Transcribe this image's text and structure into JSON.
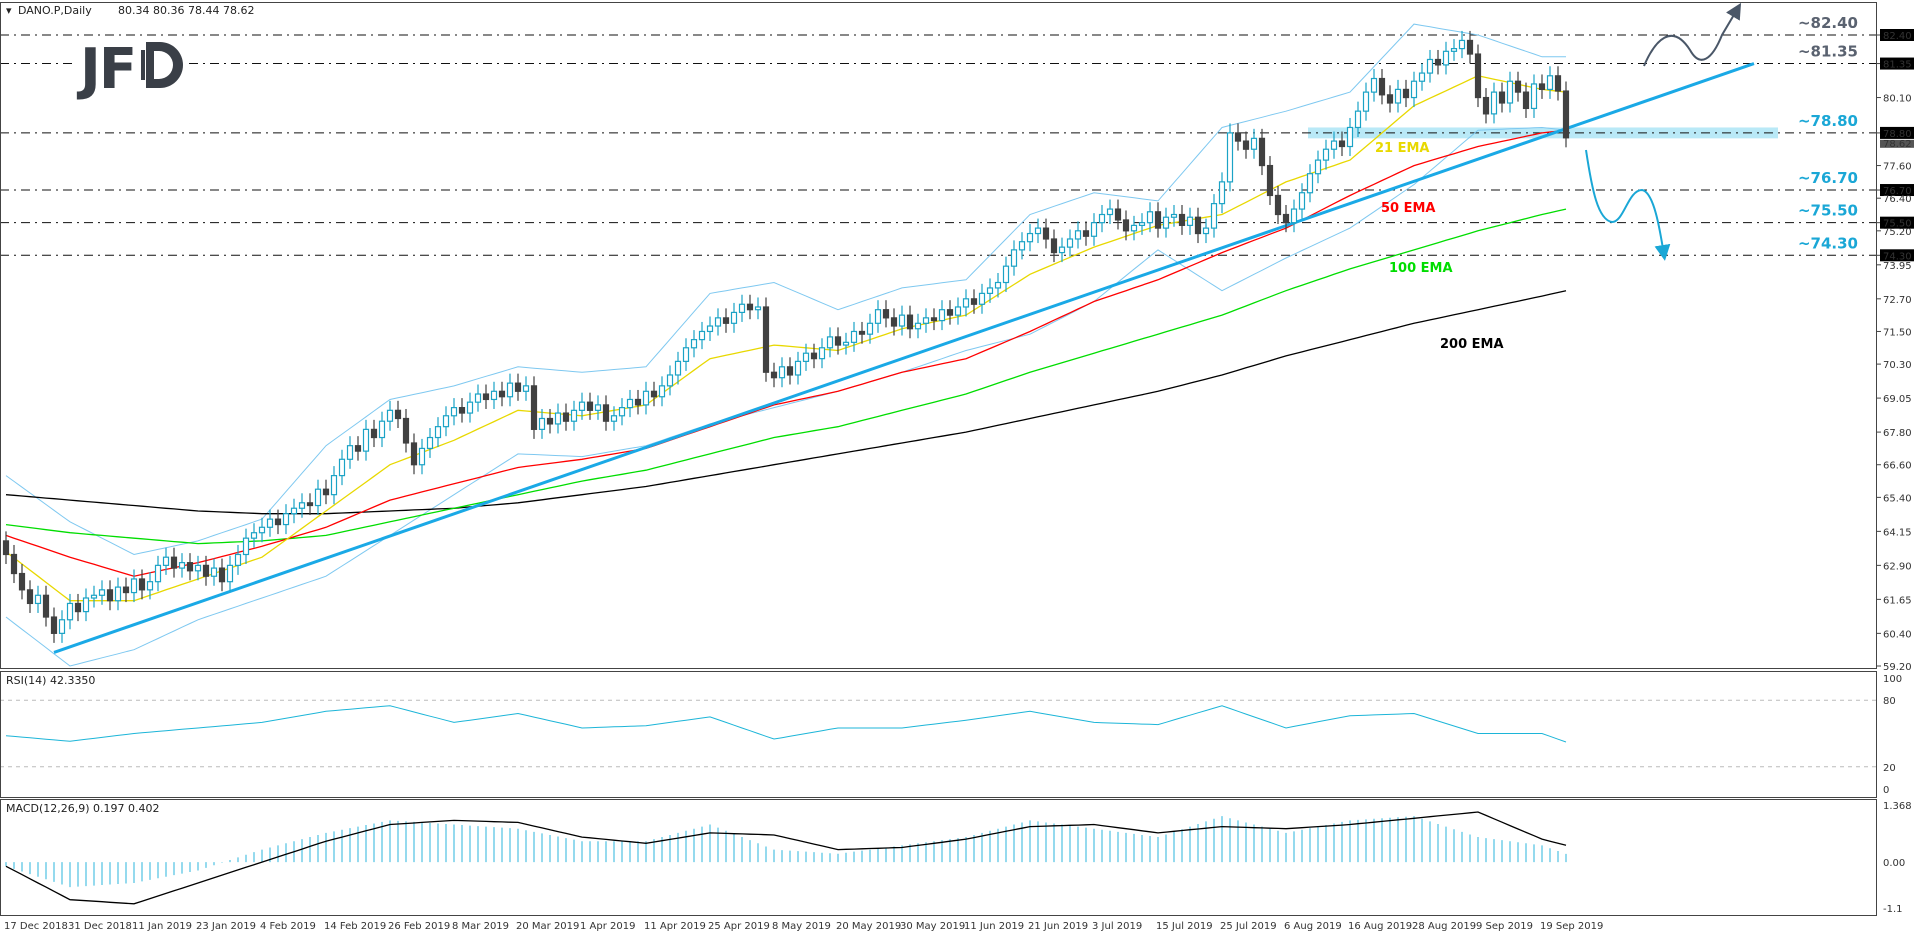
{
  "header": {
    "symbol": "DANO.P,Daily",
    "ohlc": "80.34 80.36 78.44 78.62"
  },
  "logo": "JFD",
  "colors": {
    "bull": "#1ba3c6",
    "bear": "#404040",
    "ema21": "#e8d800",
    "ema50": "#ff0000",
    "ema100": "#00dd00",
    "ema200": "#000000",
    "bollinger": "#7ec8f0",
    "trendline": "#1aa9e6",
    "support_zone": "#a8e4f5",
    "level_gray": "#5a6270",
    "level_cyan": "#1aa7d6",
    "rsi": "#1cb5d8",
    "macd_hist": "#2bb6dc",
    "macd_signal": "#000000"
  },
  "chart_data": [
    {
      "type": "candlestick",
      "title": "DANO.P,Daily",
      "x_tick_labels": [
        "17 Dec 2018",
        "31 Dec 2018",
        "11 Jan 2019",
        "23 Jan 2019",
        "4 Feb 2019",
        "14 Feb 2019",
        "26 Feb 2019",
        "8 Mar 2019",
        "20 Mar 2019",
        "1 Apr 2019",
        "11 Apr 2019",
        "25 Apr 2019",
        "8 May 2019",
        "20 May 2019",
        "30 May 2019",
        "11 Jun 2019",
        "21 Jun 2019",
        "3 Jul 2019",
        "15 Jul 2019",
        "25 Jul 2019",
        "6 Aug 2019",
        "16 Aug 2019",
        "28 Aug 2019",
        "9 Sep 2019",
        "19 Sep 2019"
      ],
      "ylim": [
        59.2,
        82.4
      ],
      "y_ticks": [
        "82.40",
        "81.35",
        "80.10",
        "78.80",
        "77.60",
        "76.70",
        "76.40",
        "75.50",
        "75.20",
        "74.30",
        "73.95",
        "72.70",
        "71.50",
        "70.30",
        "69.05",
        "67.80",
        "66.60",
        "65.40",
        "64.15",
        "62.90",
        "61.65",
        "60.40",
        "59.20"
      ],
      "highlighted_ticks": [
        "82.40",
        "81.35",
        "78.80",
        "76.70",
        "75.50",
        "74.30"
      ],
      "last_price": "78.62",
      "closes": [
        63.3,
        62.6,
        62.0,
        61.5,
        61.8,
        61.0,
        60.4,
        60.9,
        61.5,
        61.2,
        61.7,
        61.8,
        62.0,
        61.6,
        62.1,
        61.9,
        62.4,
        62.0,
        62.3,
        62.9,
        63.2,
        62.8,
        63.0,
        62.7,
        62.9,
        62.5,
        62.8,
        62.3,
        62.9,
        63.3,
        63.9,
        64.1,
        64.3,
        64.6,
        64.4,
        64.8,
        65.0,
        65.2,
        65.1,
        65.7,
        65.5,
        66.2,
        66.8,
        67.3,
        67.1,
        67.9,
        67.6,
        68.2,
        68.6,
        68.3,
        67.4,
        66.6,
        67.2,
        67.6,
        68.0,
        68.4,
        68.7,
        68.5,
        68.9,
        69.2,
        69.0,
        69.3,
        69.1,
        69.6,
        69.3,
        69.5,
        67.9,
        68.3,
        68.1,
        68.5,
        68.2,
        68.6,
        68.9,
        68.6,
        68.8,
        68.2,
        68.4,
        68.7,
        69.0,
        68.8,
        69.3,
        69.1,
        69.5,
        69.9,
        70.4,
        70.9,
        71.2,
        71.5,
        71.7,
        72.0,
        71.8,
        72.2,
        72.5,
        72.3,
        72.4,
        70.0,
        69.8,
        70.2,
        69.9,
        70.4,
        70.7,
        70.5,
        70.9,
        71.3,
        71.0,
        71.1,
        71.5,
        71.4,
        71.8,
        72.3,
        72.0,
        71.7,
        72.1,
        71.6,
        71.8,
        72.0,
        71.9,
        72.3,
        72.1,
        72.4,
        72.7,
        72.5,
        72.9,
        73.1,
        73.3,
        73.9,
        74.5,
        74.8,
        75.1,
        75.3,
        74.9,
        74.4,
        74.6,
        74.9,
        75.2,
        75.0,
        75.5,
        75.8,
        76.0,
        75.6,
        75.2,
        75.4,
        75.5,
        75.9,
        75.3,
        75.7,
        75.8,
        75.4,
        75.7,
        75.1,
        75.3,
        76.2,
        77.0,
        78.8,
        78.5,
        78.2,
        78.6,
        77.6,
        76.5,
        75.8,
        75.5,
        76.0,
        76.6,
        77.3,
        77.8,
        78.2,
        78.5,
        78.3,
        79.0,
        79.6,
        80.3,
        80.8,
        80.2,
        79.9,
        80.4,
        80.1,
        80.7,
        81.0,
        81.5,
        81.3,
        81.8,
        81.9,
        82.2,
        81.7,
        80.1,
        79.5,
        80.3,
        79.9,
        80.7,
        80.3,
        79.7,
        80.6,
        80.4,
        80.9,
        80.34,
        78.62
      ],
      "first_open": 63.8,
      "overlays_at_tick_dates_and_last": {
        "ema21": [
          63.4,
          61.6,
          61.6,
          62.4,
          63.2,
          64.9,
          66.6,
          67.5,
          68.6,
          68.4,
          68.8,
          70.5,
          71.0,
          70.8,
          71.6,
          72.1,
          73.6,
          74.6,
          75.4,
          75.8,
          77.0,
          77.8,
          79.8,
          80.9,
          80.4,
          80.3
        ],
        "ema50": [
          64.0,
          63.2,
          62.5,
          63.0,
          63.6,
          64.3,
          65.3,
          65.9,
          66.5,
          66.8,
          67.2,
          68.0,
          68.8,
          69.3,
          70.0,
          70.5,
          71.5,
          72.6,
          73.4,
          74.4,
          75.3,
          76.5,
          77.6,
          78.3,
          78.8,
          78.9
        ],
        "ema100": [
          64.4,
          64.1,
          63.9,
          63.7,
          63.8,
          64.0,
          64.5,
          65.0,
          65.5,
          66.0,
          66.4,
          67.0,
          67.6,
          68.0,
          68.6,
          69.2,
          70.0,
          70.7,
          71.4,
          72.1,
          73.0,
          73.8,
          74.5,
          75.2,
          75.8,
          76.0
        ],
        "ema200": [
          65.5,
          65.3,
          65.1,
          64.9,
          64.8,
          64.8,
          64.9,
          65.0,
          65.2,
          65.5,
          65.8,
          66.2,
          66.6,
          67.0,
          67.4,
          67.8,
          68.3,
          68.8,
          69.3,
          69.9,
          70.6,
          71.2,
          71.8,
          72.3,
          72.8,
          73.0
        ],
        "bb_upper": [
          66.2,
          64.5,
          63.3,
          63.8,
          64.6,
          67.3,
          69.0,
          69.5,
          70.2,
          70.0,
          70.2,
          72.9,
          73.3,
          72.3,
          73.1,
          73.4,
          75.8,
          76.6,
          76.3,
          79.0,
          79.6,
          80.3,
          82.8,
          82.4,
          81.6,
          81.6
        ],
        "bb_lower": [
          61.0,
          59.2,
          59.8,
          60.9,
          61.7,
          62.5,
          64.0,
          65.5,
          67.0,
          66.9,
          67.3,
          68.1,
          68.7,
          69.3,
          70.0,
          70.8,
          71.4,
          72.6,
          74.5,
          73.0,
          74.2,
          75.3,
          76.9,
          78.9,
          79.0,
          78.9
        ]
      },
      "ema_labels": {
        "ema21": "21 EMA",
        "ema50": "50 EMA",
        "ema100": "100 EMA",
        "ema200": "200 EMA"
      },
      "levels": [
        {
          "price": 82.4,
          "label": "~82.40",
          "tone": "gray"
        },
        {
          "price": 81.35,
          "label": "~81.35",
          "tone": "gray"
        },
        {
          "price": 78.8,
          "label": "~78.80",
          "tone": "cyan"
        },
        {
          "price": 76.7,
          "label": "~76.70",
          "tone": "cyan"
        },
        {
          "price": 75.5,
          "label": "~75.50",
          "tone": "cyan"
        },
        {
          "price": 74.3,
          "label": "~74.30",
          "tone": "cyan"
        }
      ]
    },
    {
      "type": "line",
      "title": "RSI(14) 42.3350",
      "ylim": [
        0,
        100
      ],
      "y_ticks": [
        "100",
        "80",
        "20",
        "0"
      ],
      "reference_levels": [
        80,
        20
      ],
      "values_at_tick_dates_and_last": [
        48,
        43,
        50,
        55,
        60,
        70,
        75,
        60,
        68,
        55,
        57,
        65,
        45,
        55,
        55,
        62,
        70,
        60,
        58,
        75,
        55,
        66,
        68,
        50,
        50,
        42.335
      ]
    },
    {
      "type": "bar",
      "title": "MACD(12,26,9) 0.197 0.402",
      "ylim": [
        -1.1,
        1.368
      ],
      "y_ticks": [
        "1.368",
        "0.00",
        "-1.1"
      ],
      "macd_at_tick_dates_and_last": [
        -0.1,
        -0.6,
        -0.5,
        -0.2,
        0.3,
        0.7,
        1.0,
        0.9,
        0.8,
        0.5,
        0.5,
        0.9,
        0.3,
        0.2,
        0.4,
        0.6,
        1.0,
        0.8,
        0.6,
        1.1,
        0.7,
        1.0,
        1.1,
        0.6,
        0.4,
        0.197
      ],
      "signal_at_tick_dates_and_last": [
        -0.1,
        -0.9,
        -1.0,
        -0.5,
        0.0,
        0.5,
        0.9,
        1.0,
        0.95,
        0.6,
        0.45,
        0.7,
        0.65,
        0.3,
        0.35,
        0.55,
        0.85,
        0.9,
        0.7,
        0.85,
        0.8,
        0.9,
        1.05,
        1.2,
        0.55,
        0.402
      ]
    }
  ]
}
